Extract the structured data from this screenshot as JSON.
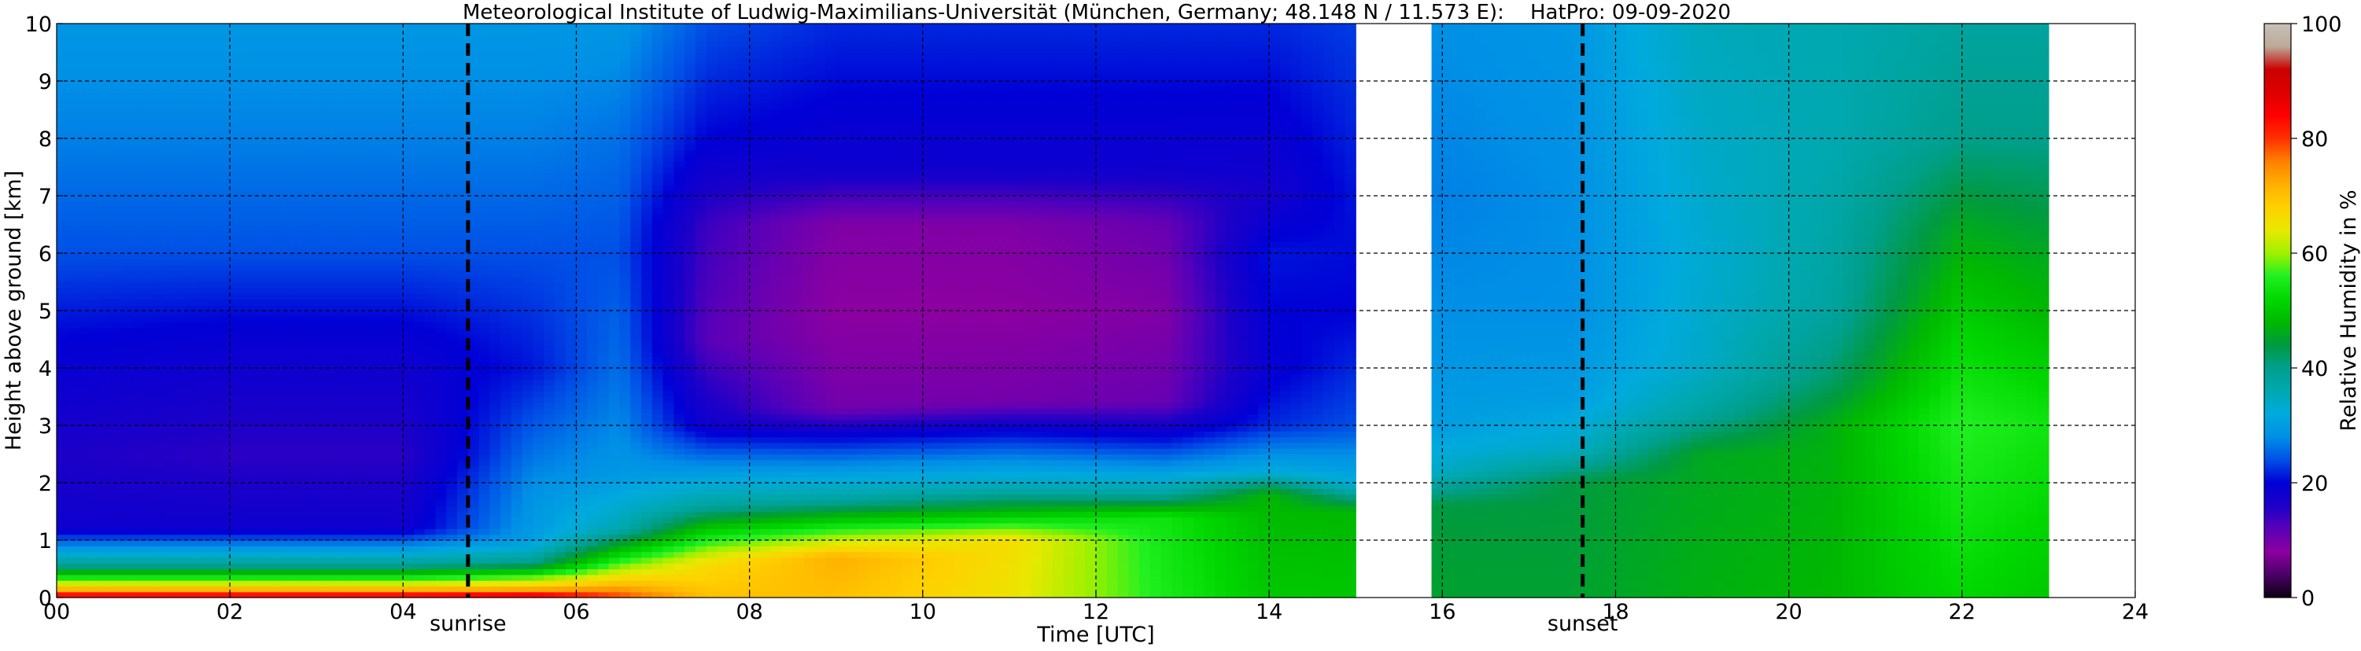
{
  "chart_data": {
    "type": "heatmap",
    "title": "Meteorological Institute of Ludwig-Maximilians-Universität (München, Germany; 48.148 N / 11.573 E):    HatPro: 09-09-2020",
    "xlabel": "Time [UTC]",
    "ylabel": "Height above ground [km]",
    "xlim": [
      0,
      24
    ],
    "ylim": [
      0,
      10
    ],
    "x_ticks": [
      0,
      2,
      4,
      6,
      8,
      10,
      12,
      14,
      16,
      18,
      20,
      22,
      24
    ],
    "x_tick_labels": [
      "00",
      "02",
      "04",
      "06",
      "08",
      "10",
      "12",
      "14",
      "16",
      "18",
      "20",
      "22",
      "24"
    ],
    "y_ticks": [
      0,
      1,
      2,
      3,
      4,
      5,
      6,
      7,
      8,
      9,
      10
    ],
    "y_tick_labels": [
      "0",
      "1",
      "2",
      "3",
      "4",
      "5",
      "6",
      "7",
      "8",
      "9",
      "10"
    ],
    "grid": true,
    "colorbar": {
      "label": "Relative Humidity in %",
      "range": [
        0,
        100
      ],
      "ticks": [
        0,
        20,
        40,
        60,
        80,
        100
      ],
      "tick_labels": [
        "0",
        "20",
        "40",
        "60",
        "80",
        "100"
      ],
      "colors": [
        "#0b0010",
        "#4b0068",
        "#8c00a0",
        "#5a00b8",
        "#1c00c8",
        "#0000d6",
        "#0050e6",
        "#0090e6",
        "#00aadd",
        "#00a8b0",
        "#009f8c",
        "#009a40",
        "#00b800",
        "#00d800",
        "#20f020",
        "#a0f000",
        "#e8e800",
        "#ffd000",
        "#ffb000",
        "#ff8000",
        "#ff3000",
        "#ff0000",
        "#dd0000",
        "#cc0000",
        "#bbaa99",
        "#c8c0b8"
      ]
    },
    "markers": [
      {
        "label": "sunrise",
        "time": 4.75
      },
      {
        "label": "sunset",
        "time": 17.62
      }
    ],
    "data_gap": [
      15.05,
      15.88
    ],
    "data_end": 23.0,
    "humidity_profile": [
      {
        "time": 0,
        "rh": [
          [
            0,
            90
          ],
          [
            0.1,
            75
          ],
          [
            0.3,
            58
          ],
          [
            0.55,
            40
          ],
          [
            0.9,
            28
          ],
          [
            1.2,
            18
          ],
          [
            2.5,
            16
          ],
          [
            4.5,
            20
          ],
          [
            6,
            24
          ],
          [
            8,
            27
          ],
          [
            10,
            29
          ]
        ]
      },
      {
        "time": 2,
        "rh": [
          [
            0,
            90
          ],
          [
            0.1,
            75
          ],
          [
            0.3,
            58
          ],
          [
            0.55,
            40
          ],
          [
            0.9,
            28
          ],
          [
            1.2,
            18
          ],
          [
            2.5,
            15
          ],
          [
            4.5,
            19
          ],
          [
            6,
            24
          ],
          [
            8,
            27
          ],
          [
            10,
            29
          ]
        ]
      },
      {
        "time": 4,
        "rh": [
          [
            0,
            90
          ],
          [
            0.1,
            75
          ],
          [
            0.3,
            58
          ],
          [
            0.55,
            40
          ],
          [
            0.9,
            28
          ],
          [
            1.2,
            18
          ],
          [
            2.5,
            15
          ],
          [
            4.5,
            19
          ],
          [
            6,
            24
          ],
          [
            8,
            27
          ],
          [
            10,
            29
          ]
        ]
      },
      {
        "time": 5.5,
        "rh": [
          [
            0,
            92
          ],
          [
            0.1,
            76
          ],
          [
            0.35,
            58
          ],
          [
            0.6,
            40
          ],
          [
            1.0,
            30
          ],
          [
            2,
            28
          ],
          [
            4,
            21
          ],
          [
            6,
            24
          ],
          [
            8,
            27
          ],
          [
            10,
            29
          ]
        ]
      },
      {
        "time": 6.5,
        "rh": [
          [
            0,
            80
          ],
          [
            0.3,
            68
          ],
          [
            0.8,
            50
          ],
          [
            1.2,
            36
          ],
          [
            2.2,
            29
          ],
          [
            4,
            26
          ],
          [
            6,
            24
          ],
          [
            8,
            26
          ],
          [
            10,
            29
          ]
        ]
      },
      {
        "time": 7.5,
        "rh": [
          [
            0,
            70
          ],
          [
            0.6,
            66
          ],
          [
            1.2,
            50
          ],
          [
            1.6,
            38
          ],
          [
            2.3,
            28
          ],
          [
            3,
            18
          ],
          [
            4.5,
            12
          ],
          [
            6.5,
            14
          ],
          [
            8,
            20
          ],
          [
            10,
            24
          ]
        ]
      },
      {
        "time": 9,
        "rh": [
          [
            0,
            70
          ],
          [
            0.7,
            72
          ],
          [
            1.3,
            52
          ],
          [
            1.7,
            38
          ],
          [
            2.3,
            28
          ],
          [
            2.8,
            20
          ],
          [
            3.3,
            10
          ],
          [
            5,
            8
          ],
          [
            6.5,
            9
          ],
          [
            7.5,
            18
          ],
          [
            10,
            22
          ]
        ]
      },
      {
        "time": 11,
        "rh": [
          [
            0,
            65
          ],
          [
            1.0,
            66
          ],
          [
            1.5,
            48
          ],
          [
            1.9,
            36
          ],
          [
            2.4,
            28
          ],
          [
            2.9,
            20
          ],
          [
            3.4,
            10
          ],
          [
            5,
            8
          ],
          [
            6.5,
            9
          ],
          [
            7.5,
            18
          ],
          [
            10,
            22
          ]
        ]
      },
      {
        "time": 12.8,
        "rh": [
          [
            0,
            55
          ],
          [
            1.4,
            54
          ],
          [
            1.8,
            38
          ],
          [
            2.3,
            28
          ],
          [
            2.8,
            20
          ],
          [
            3.4,
            11
          ],
          [
            5,
            9
          ],
          [
            6.5,
            11
          ],
          [
            7.5,
            18
          ],
          [
            10,
            22
          ]
        ]
      },
      {
        "time": 14,
        "rh": [
          [
            0,
            50
          ],
          [
            1.8,
            48
          ],
          [
            2.2,
            32
          ],
          [
            3,
            22
          ],
          [
            4,
            19
          ],
          [
            6,
            21
          ],
          [
            7,
            17
          ],
          [
            10,
            22
          ]
        ]
      },
      {
        "time": 15,
        "rh": [
          [
            0,
            50
          ],
          [
            1.5,
            48
          ],
          [
            2.0,
            32
          ],
          [
            3,
            24
          ],
          [
            5,
            20
          ],
          [
            7,
            21
          ],
          [
            10,
            23
          ]
        ]
      },
      {
        "time": 15.9,
        "rh": [
          [
            0,
            45
          ],
          [
            1.6,
            44
          ],
          [
            2.2,
            34
          ],
          [
            3,
            30
          ],
          [
            5,
            28
          ],
          [
            7,
            27
          ],
          [
            10,
            28
          ]
        ]
      },
      {
        "time": 17.5,
        "rh": [
          [
            0,
            45
          ],
          [
            2.0,
            44
          ],
          [
            2.6,
            34
          ],
          [
            3.5,
            30
          ],
          [
            5,
            28
          ],
          [
            7,
            28
          ],
          [
            10,
            29
          ]
        ]
      },
      {
        "time": 19,
        "rh": [
          [
            0,
            47
          ],
          [
            2.5,
            46
          ],
          [
            3.2,
            38
          ],
          [
            4,
            34
          ],
          [
            6,
            33
          ],
          [
            8,
            34
          ],
          [
            10,
            35
          ]
        ]
      },
      {
        "time": 20.5,
        "rh": [
          [
            0,
            48
          ],
          [
            3,
            47
          ],
          [
            3.8,
            42
          ],
          [
            5,
            38
          ],
          [
            8,
            36
          ],
          [
            10,
            36
          ]
        ]
      },
      {
        "time": 22,
        "rh": [
          [
            0,
            52
          ],
          [
            3,
            56
          ],
          [
            4.5,
            52
          ],
          [
            6.5,
            46
          ],
          [
            8,
            40
          ],
          [
            10,
            38
          ]
        ]
      },
      {
        "time": 23,
        "rh": [
          [
            0,
            50
          ],
          [
            3,
            54
          ],
          [
            5,
            48
          ],
          [
            6,
            46
          ],
          [
            8,
            40
          ],
          [
            10,
            38
          ]
        ]
      }
    ]
  }
}
